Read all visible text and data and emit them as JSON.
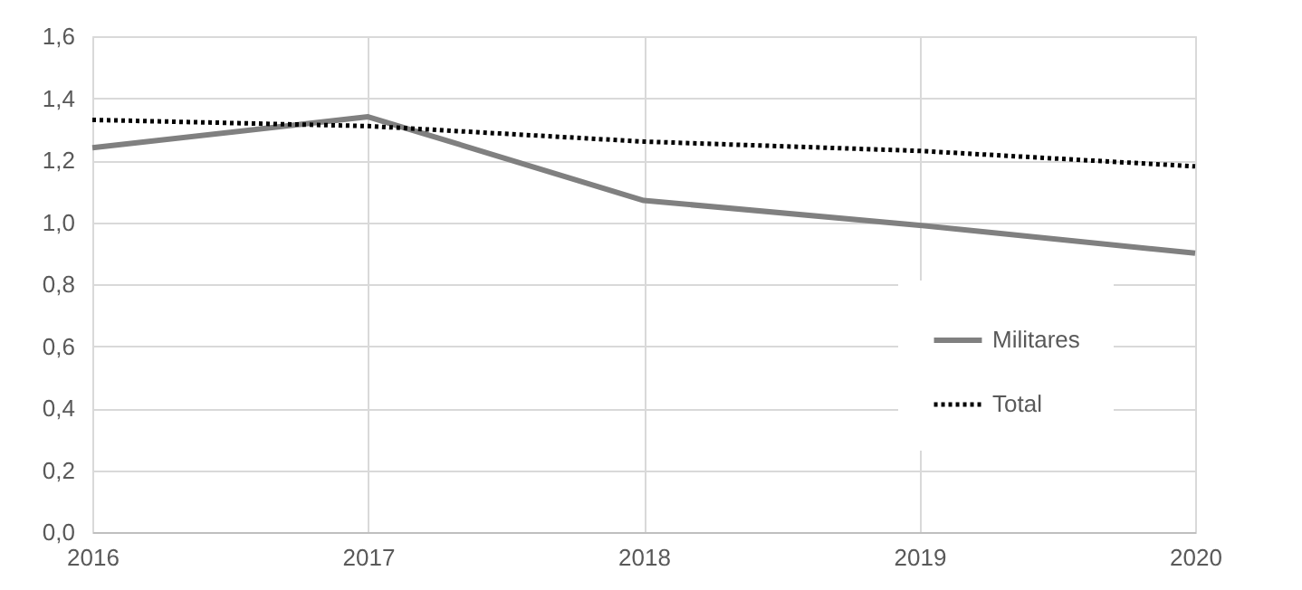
{
  "chart_data": {
    "type": "line",
    "x": [
      2016,
      2017,
      2018,
      2019,
      2020
    ],
    "series": [
      {
        "name": "Militares",
        "color": "#808080",
        "line_style": "solid",
        "values": [
          1.24,
          1.34,
          1.07,
          0.99,
          0.9
        ]
      },
      {
        "name": "Total",
        "color": "#000000",
        "line_style": "dotted",
        "values": [
          1.33,
          1.31,
          1.26,
          1.23,
          1.18
        ]
      }
    ],
    "xlim": [
      2016,
      2020
    ],
    "xticks": [
      2016,
      2017,
      2018,
      2019,
      2020
    ],
    "ylim": [
      0,
      1.6
    ],
    "yticks": [
      {
        "value": 0,
        "label": "0,0"
      },
      {
        "value": 0.2,
        "label": "0,2"
      },
      {
        "value": 0.4,
        "label": "0,4"
      },
      {
        "value": 0.6,
        "label": "0,6"
      },
      {
        "value": 0.8,
        "label": "0,8"
      },
      {
        "value": 1.0,
        "label": "1,0"
      },
      {
        "value": 1.2,
        "label": "1,2"
      },
      {
        "value": 1.4,
        "label": "1,4"
      },
      {
        "value": 1.6,
        "label": "1,6"
      }
    ],
    "grid": true,
    "legend": "bottom right",
    "marker": "none"
  }
}
